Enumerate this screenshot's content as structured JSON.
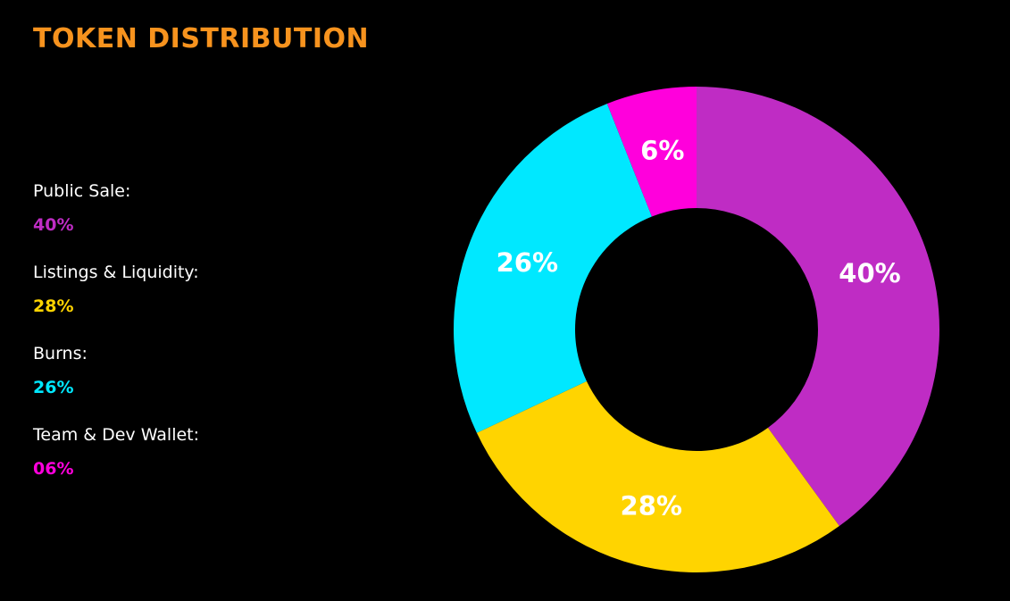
{
  "title": "TOKEN DISTRIBUTION",
  "colors": {
    "title": "#f7931e",
    "background": "#000000",
    "slice_text": "#ffffff"
  },
  "legend": [
    {
      "label": "Public Sale:",
      "value": "40%",
      "color": "#bf2cc4"
    },
    {
      "label": "Listings & Liquidity:",
      "value": "28%",
      "color": "#ffd400"
    },
    {
      "label": "Burns:",
      "value": "26%",
      "color": "#00e8ff"
    },
    {
      "label": "Team & Dev Wallet:",
      "value": "06%",
      "color": "#ff00dc"
    }
  ],
  "chart_data": {
    "type": "pie",
    "variant": "donut",
    "categories": [
      "Public Sale",
      "Listings & Liquidity",
      "Burns",
      "Team & Dev Wallet"
    ],
    "values": [
      40,
      28,
      26,
      6
    ],
    "data_labels": [
      "40%",
      "28%",
      "26%",
      "6%"
    ],
    "colors": [
      "#bf2cc4",
      "#ffd400",
      "#00e8ff",
      "#ff00dc"
    ],
    "start": "top",
    "direction": "clockwise",
    "legend": "left"
  }
}
